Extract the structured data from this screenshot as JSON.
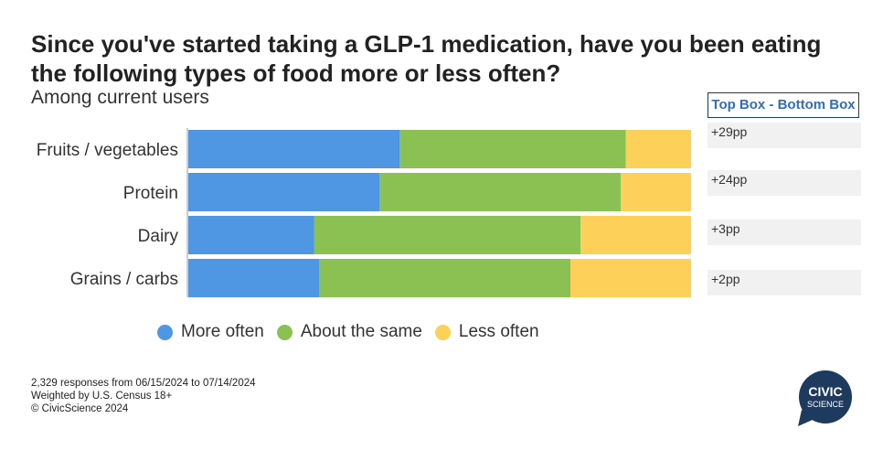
{
  "title": "Since you've started taking a GLP-1 medication, have you been eating the following types of food more or less often?",
  "subtitle": "Among current users",
  "chart_data": {
    "type": "bar",
    "orientation": "horizontal",
    "stacked": true,
    "normalized_percent": true,
    "categories": [
      "Fruits / vegetables",
      "Protein",
      "Dairy",
      "Grains / carbs"
    ],
    "series": [
      {
        "name": "More often",
        "color": "#4f97e3",
        "values": [
          42,
          38,
          25,
          26
        ]
      },
      {
        "name": "About the same",
        "color": "#8bc152",
        "values": [
          45,
          48,
          53,
          50
        ]
      },
      {
        "name": "Less often",
        "color": "#fdd05a",
        "values": [
          13,
          14,
          22,
          24
        ]
      }
    ],
    "xlim": [
      0,
      100
    ],
    "legend_position": "bottom",
    "grid": false
  },
  "diff_table": {
    "header": "Top Box - Bottom Box",
    "values": [
      "+29pp",
      "+24pp",
      "+3pp",
      "+2pp"
    ]
  },
  "footer": {
    "line1": "2,329 responses from 06/15/2024 to 07/14/2024",
    "line2": "Weighted by U.S. Census 18+",
    "line3": "© CivicScience 2024"
  },
  "logo": {
    "line1": "CIVIC",
    "line2": "SCIENCE",
    "color": "#1f3a5f"
  }
}
